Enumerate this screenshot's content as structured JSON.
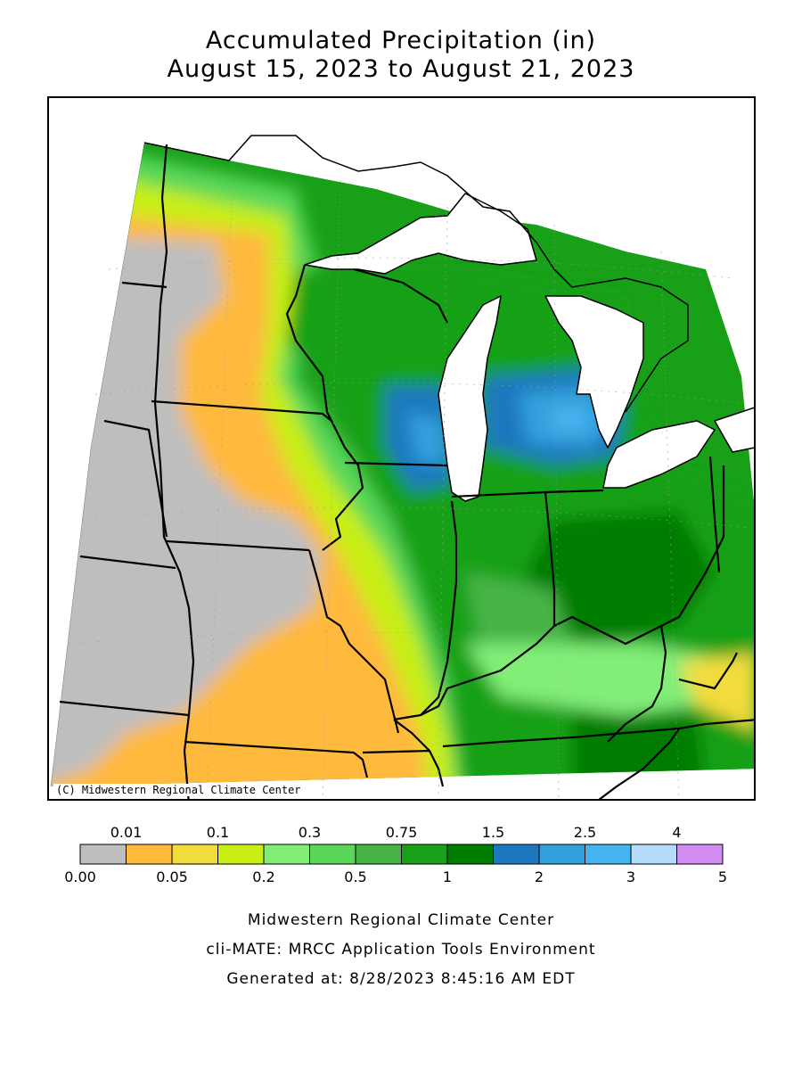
{
  "title": {
    "line1": "Accumulated Precipitation (in)",
    "line2": "August 15, 2023 to August 21, 2023"
  },
  "copyright": "(C) Midwestern Regional Climate Center",
  "legend": {
    "upper_labels": [
      "0.01",
      "0.1",
      "0.3",
      "0.75",
      "1.5",
      "2.5",
      "4"
    ],
    "lower_labels": [
      "0.00",
      "0.05",
      "0.2",
      "0.5",
      "1",
      "2",
      "3",
      "5"
    ],
    "bins": [
      "#bebebe",
      "#ffb93c",
      "#f2dc3c",
      "#c8ee14",
      "#82ee78",
      "#5ad75a",
      "#46b446",
      "#19a019",
      "#007d00",
      "#1e78be",
      "#32a0dc",
      "#46b4f0",
      "#b4dcfa",
      "#d28cf0"
    ]
  },
  "footer": {
    "line1": "Midwestern Regional Climate Center",
    "line2": "cli-MATE: MRCC Application Tools Environment",
    "line3": "Generated at: 8/28/2023 8:45:16 AM EDT"
  },
  "colors": {
    "no_precip": "#bebebe",
    "water": "#ffffff",
    "boundary": "#000000"
  }
}
